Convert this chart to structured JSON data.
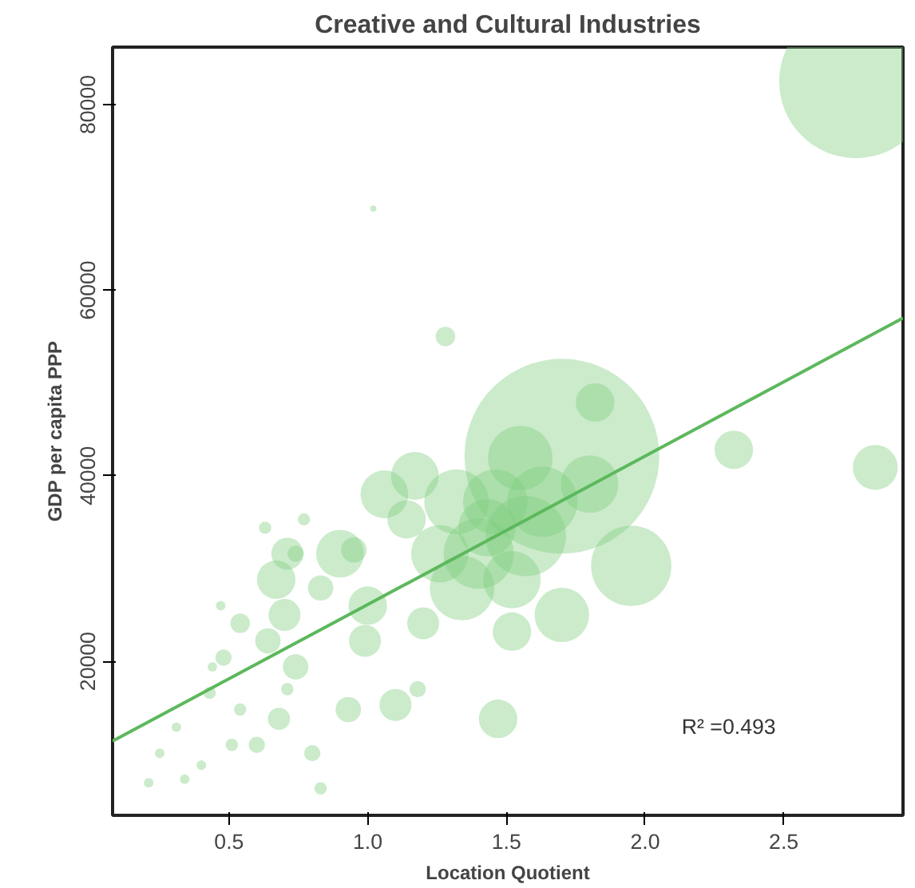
{
  "chart_data": {
    "type": "bubble",
    "title": "Creative and Cultural Industries",
    "xlabel": "Location Quotient",
    "ylabel": "GDP per capita PPP",
    "annotations": [
      "R² =0.493"
    ],
    "xlim": [
      0.08,
      2.93
    ],
    "ylim": [
      3400,
      86200
    ],
    "xticks": [
      {
        "value": 0.5,
        "label": "0.5"
      },
      {
        "value": 1,
        "label": "1.0"
      },
      {
        "value": 1.5,
        "label": "1.5"
      },
      {
        "value": 2,
        "label": "2.0"
      },
      {
        "value": 2.5,
        "label": "2.5"
      }
    ],
    "yticks": [
      20000,
      40000,
      60000,
      80000
    ],
    "grid": false,
    "series": [
      {
        "marker": "circle",
        "color": "#7ccc7c",
        "x": [
          1.7,
          2.76,
          2.83,
          2.32,
          1.82,
          1.95,
          1.55,
          1.8,
          1.7,
          1.52,
          1.47,
          1.28,
          1.02,
          1.17,
          1.32,
          1.4,
          1.57,
          1.46,
          1.26,
          1.14,
          1.1,
          0.93,
          1.18,
          0.67,
          0.7,
          0.64,
          0.74,
          0.9,
          0.83,
          0.54,
          0.48,
          0.43,
          0.31,
          0.25,
          0.21,
          0.34,
          0.4,
          0.54,
          0.6,
          0.68,
          0.71,
          0.51,
          0.44,
          0.47,
          0.63,
          0.77,
          0.74,
          1.06,
          1.0,
          0.99,
          0.8,
          0.83,
          1.34,
          1.52,
          1.63,
          1.43,
          0.95,
          0.71,
          1.2
        ],
        "values": [
          42100,
          82500,
          40900,
          42800,
          47900,
          30300,
          41900,
          39100,
          25000,
          23200,
          13800,
          55000,
          68800,
          40000,
          37200,
          31600,
          33500,
          37200,
          31600,
          35300,
          15300,
          14800,
          17000,
          28800,
          25000,
          22200,
          19400,
          31600,
          27900,
          24100,
          20400,
          16600,
          12900,
          10100,
          6900,
          7300,
          8800,
          14800,
          11000,
          13800,
          17000,
          11000,
          19400,
          26000,
          34400,
          35300,
          31600,
          38000,
          26000,
          22200,
          10100,
          6300,
          27900,
          28800,
          37200,
          34400,
          32000,
          31600,
          24100
        ],
        "sizes": [
          1,
          0.62,
          0.053,
          0.039,
          0.039,
          0.17,
          0.11,
          0.087,
          0.078,
          0.039,
          0.039,
          0.01,
          0.001,
          0.06,
          0.11,
          0.13,
          0.17,
          0.11,
          0.087,
          0.039,
          0.027,
          0.017,
          0.007,
          0.039,
          0.027,
          0.017,
          0.017,
          0.06,
          0.017,
          0.01,
          0.007,
          0.004,
          0.0024,
          0.0024,
          0.0024,
          0.0024,
          0.0024,
          0.004,
          0.007,
          0.013,
          0.004,
          0.004,
          0.0024,
          0.0024,
          0.004,
          0.004,
          0.007,
          0.06,
          0.039,
          0.027,
          0.007,
          0.004,
          0.11,
          0.087,
          0.13,
          0.087,
          0.017,
          0.027,
          0.027
        ]
      },
      {
        "type": "line",
        "color": "#5cb85c",
        "x": [
          0.08,
          2.93
        ],
        "values": [
          11400,
          57000
        ]
      }
    ]
  }
}
